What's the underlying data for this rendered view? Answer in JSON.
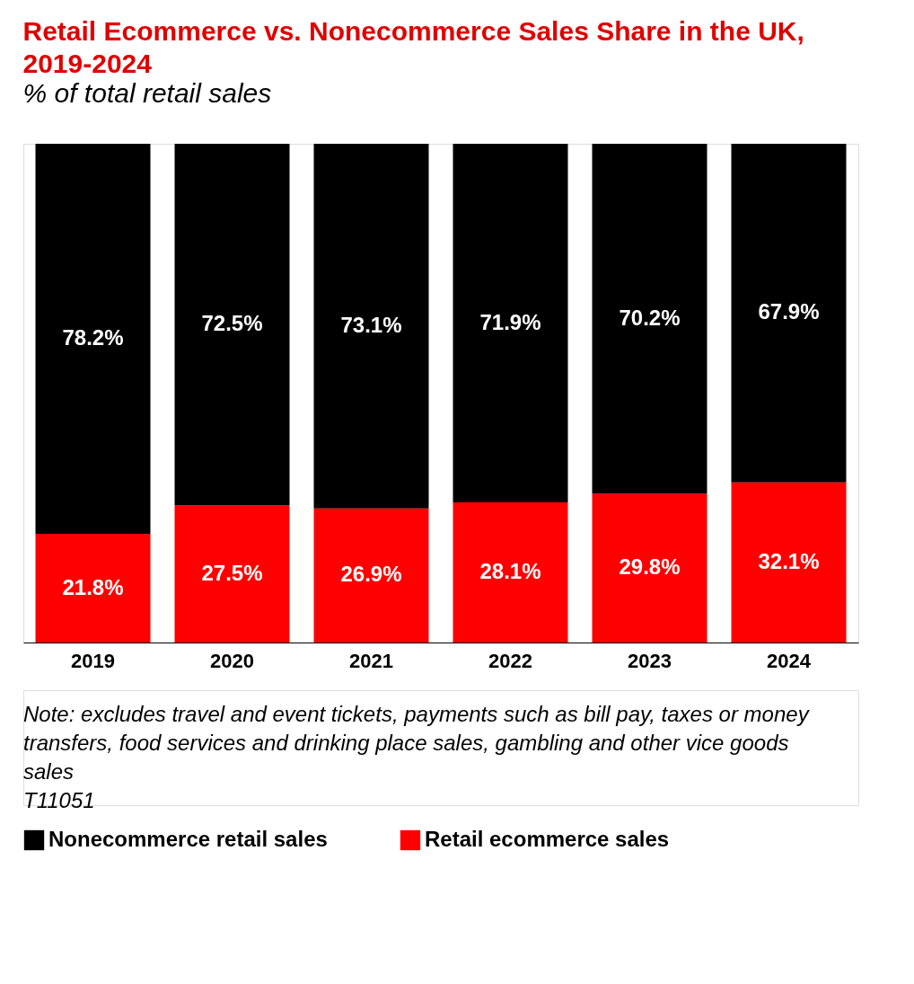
{
  "chart_data": {
    "type": "bar",
    "stacked": true,
    "title": "Retail Ecommerce vs. Nonecommerce Sales Share in the UK, 2019-2024",
    "subtitle": "% of total retail sales",
    "categories": [
      "2019",
      "2020",
      "2021",
      "2022",
      "2023",
      "2024"
    ],
    "series": [
      {
        "name": "Retail ecommerce sales",
        "color": "#ff0000",
        "values": [
          21.8,
          27.5,
          26.9,
          28.1,
          29.8,
          32.1
        ],
        "value_labels": [
          "21.8%",
          "27.5%",
          "26.9%",
          "28.1%",
          "29.8%",
          "32.1%"
        ]
      },
      {
        "name": "Nonecommerce retail sales",
        "color": "#000000",
        "values": [
          78.2,
          72.5,
          73.1,
          71.9,
          70.2,
          67.9
        ],
        "value_labels": [
          "78.2%",
          "72.5%",
          "73.1%",
          "71.9%",
          "70.2%",
          "67.9%"
        ]
      }
    ],
    "legend": "bottom",
    "grid": false,
    "annotations": [
      "Note: excludes travel and event tickets, payments such as bill pay, taxes or money transfers, food services and drinking place sales, gambling and other vice goods sales",
      "T11051"
    ]
  }
}
